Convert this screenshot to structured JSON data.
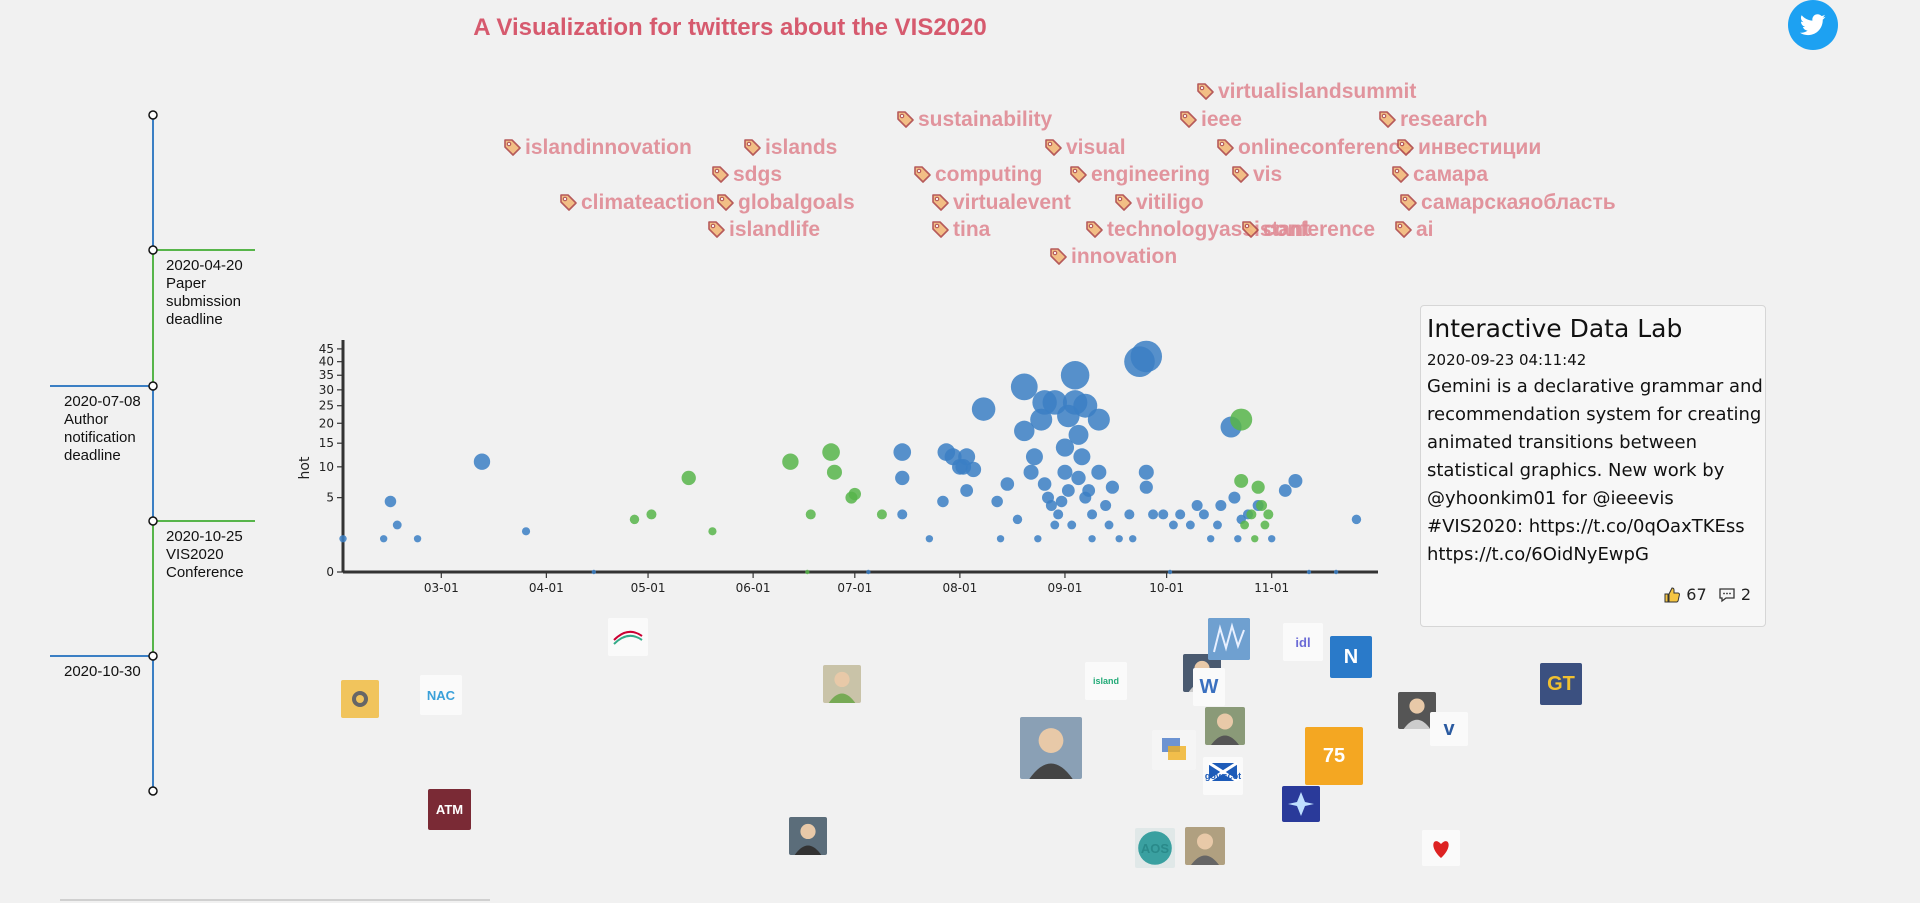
{
  "page": {
    "title": "A Visualization for twitters about the VIS2020",
    "twitter_icon": "twitter-bird-icon",
    "accent": "#d65a6e",
    "tag_color": "#e08a95",
    "blue": "#3b7fc4",
    "green": "#57b54a"
  },
  "timeline": {
    "events": [
      {
        "date": "2020-04-20",
        "text": "Paper\nsubmission\ndeadline",
        "side": "right",
        "color": "#57b54a"
      },
      {
        "date": "2020-07-08",
        "text": "Author\nnotification\ndeadline",
        "side": "left",
        "color": "#3b7fc4"
      },
      {
        "date": "2020-10-25",
        "text": "VIS2020\nConference",
        "side": "right",
        "color": "#57b54a"
      },
      {
        "date": "2020-10-30",
        "text": "",
        "side": "left",
        "color": "#3b7fc4"
      }
    ]
  },
  "tags": [
    {
      "text": "virtualislandsummit",
      "icon": "tag-icon"
    },
    {
      "text": "sustainability",
      "icon": "tag-icon"
    },
    {
      "text": "ieee",
      "icon": "tag-icon"
    },
    {
      "text": "research",
      "icon": "tag-icon"
    },
    {
      "text": "islandinnovation",
      "icon": "tag-icon"
    },
    {
      "text": "islands",
      "icon": "tag-icon"
    },
    {
      "text": "visual",
      "icon": "tag-icon"
    },
    {
      "text": "onlineconference",
      "icon": "tag-icon"
    },
    {
      "text": "инвестиции",
      "icon": "tag-icon"
    },
    {
      "text": "sdgs",
      "icon": "tag-icon"
    },
    {
      "text": "computing",
      "icon": "tag-icon"
    },
    {
      "text": "engineering",
      "icon": "tag-icon"
    },
    {
      "text": "vis",
      "icon": "tag-icon"
    },
    {
      "text": "самара",
      "icon": "tag-icon"
    },
    {
      "text": "climateaction",
      "icon": "tag-icon"
    },
    {
      "text": "globalgoals",
      "icon": "tag-icon"
    },
    {
      "text": "virtualevent",
      "icon": "tag-icon"
    },
    {
      "text": "vitiligo",
      "icon": "tag-icon"
    },
    {
      "text": "самарскаяобласть",
      "icon": "tag-icon"
    },
    {
      "text": "islandlife",
      "icon": "tag-icon"
    },
    {
      "text": "tina",
      "icon": "tag-icon"
    },
    {
      "text": "technologyassistant",
      "icon": "tag-icon"
    },
    {
      "text": "conference",
      "icon": "tag-icon"
    },
    {
      "text": "ai",
      "icon": "tag-icon"
    },
    {
      "text": "innovation",
      "icon": "tag-icon"
    }
  ],
  "chart_data": {
    "type": "scatter",
    "xlabel": "",
    "ylabel": "hot",
    "x_tick_labels": [
      "03-01",
      "04-01",
      "05-01",
      "06-01",
      "07-01",
      "08-01",
      "09-01",
      "10-01",
      "11-01"
    ],
    "y_tick_labels": [
      "0",
      "5",
      "10",
      "15",
      "20",
      "25",
      "30",
      "35",
      "40",
      "45"
    ],
    "xlim": [
      "2020-02-01",
      "2020-11-30"
    ],
    "ylim": [
      0,
      47
    ],
    "y_scale": "sqrt",
    "series": [
      {
        "color": "#3b7fc4",
        "points": [
          [
            "2020-02-01",
            1
          ],
          [
            "2020-02-13",
            1
          ],
          [
            "2020-02-15",
            4.5
          ],
          [
            "2020-02-17",
            2
          ],
          [
            "2020-02-23",
            1
          ],
          [
            "2020-03-13",
            11
          ],
          [
            "2020-03-26",
            1.5
          ],
          [
            "2020-04-15",
            0
          ],
          [
            "2020-07-05",
            0
          ],
          [
            "2020-07-15",
            13
          ],
          [
            "2020-07-15",
            8
          ],
          [
            "2020-07-15",
            3
          ],
          [
            "2020-07-23",
            1
          ],
          [
            "2020-07-27",
            4.5
          ],
          [
            "2020-07-28",
            13
          ],
          [
            "2020-07-30",
            12
          ],
          [
            "2020-08-01",
            10
          ],
          [
            "2020-08-02",
            10
          ],
          [
            "2020-08-03",
            6
          ],
          [
            "2020-08-03",
            12
          ],
          [
            "2020-08-05",
            9.5
          ],
          [
            "2020-08-08",
            24
          ],
          [
            "2020-08-12",
            4.5
          ],
          [
            "2020-08-13",
            1
          ],
          [
            "2020-08-15",
            7
          ],
          [
            "2020-08-18",
            2.5
          ],
          [
            "2020-08-20",
            18
          ],
          [
            "2020-08-20",
            31
          ],
          [
            "2020-08-22",
            9
          ],
          [
            "2020-08-23",
            12
          ],
          [
            "2020-08-24",
            1
          ],
          [
            "2020-08-25",
            21
          ],
          [
            "2020-08-26",
            26
          ],
          [
            "2020-08-26",
            7
          ],
          [
            "2020-08-27",
            5
          ],
          [
            "2020-08-28",
            4
          ],
          [
            "2020-08-29",
            26
          ],
          [
            "2020-08-29",
            2
          ],
          [
            "2020-08-30",
            3
          ],
          [
            "2020-08-31",
            4.5
          ],
          [
            "2020-09-01",
            14
          ],
          [
            "2020-09-01",
            9
          ],
          [
            "2020-09-02",
            22
          ],
          [
            "2020-09-02",
            6
          ],
          [
            "2020-09-03",
            2
          ],
          [
            "2020-09-04",
            26
          ],
          [
            "2020-09-04",
            35
          ],
          [
            "2020-09-05",
            17
          ],
          [
            "2020-09-05",
            8
          ],
          [
            "2020-09-06",
            12
          ],
          [
            "2020-09-07",
            25
          ],
          [
            "2020-09-07",
            5
          ],
          [
            "2020-09-08",
            6
          ],
          [
            "2020-09-09",
            3
          ],
          [
            "2020-09-09",
            1
          ],
          [
            "2020-09-11",
            9
          ],
          [
            "2020-09-11",
            21
          ],
          [
            "2020-09-13",
            4
          ],
          [
            "2020-09-14",
            2
          ],
          [
            "2020-09-15",
            6.5
          ],
          [
            "2020-09-17",
            1
          ],
          [
            "2020-09-20",
            3
          ],
          [
            "2020-09-21",
            1
          ],
          [
            "2020-09-23",
            40
          ],
          [
            "2020-09-25",
            42
          ],
          [
            "2020-09-25",
            9
          ],
          [
            "2020-09-25",
            6.5
          ],
          [
            "2020-09-27",
            3
          ],
          [
            "2020-09-30",
            3
          ],
          [
            "2020-10-02",
            0
          ],
          [
            "2020-10-03",
            2
          ],
          [
            "2020-10-05",
            3
          ],
          [
            "2020-10-08",
            2
          ],
          [
            "2020-10-10",
            4
          ],
          [
            "2020-10-12",
            3
          ],
          [
            "2020-10-14",
            1
          ],
          [
            "2020-10-16",
            2
          ],
          [
            "2020-10-17",
            4
          ],
          [
            "2020-10-20",
            19
          ],
          [
            "2020-10-21",
            5
          ],
          [
            "2020-10-22",
            1
          ],
          [
            "2020-10-23",
            2.5
          ],
          [
            "2020-10-25",
            3
          ],
          [
            "2020-10-28",
            4
          ],
          [
            "2020-11-01",
            1
          ],
          [
            "2020-11-05",
            6
          ],
          [
            "2020-11-08",
            7.5
          ],
          [
            "2020-11-12",
            0
          ],
          [
            "2020-11-20",
            0
          ],
          [
            "2020-11-26",
            2.5
          ]
        ]
      },
      {
        "color": "#57b54a",
        "points": [
          [
            "2020-04-27",
            2.5
          ],
          [
            "2020-05-02",
            3
          ],
          [
            "2020-05-13",
            8
          ],
          [
            "2020-05-20",
            1.5
          ],
          [
            "2020-06-12",
            11
          ],
          [
            "2020-06-17",
            0
          ],
          [
            "2020-06-18",
            3
          ],
          [
            "2020-06-24",
            13
          ],
          [
            "2020-06-25",
            9
          ],
          [
            "2020-06-30",
            5
          ],
          [
            "2020-07-01",
            5.5
          ],
          [
            "2020-07-09",
            3
          ],
          [
            "2020-10-23",
            21
          ],
          [
            "2020-10-23",
            7.5
          ],
          [
            "2020-10-24",
            2
          ],
          [
            "2020-10-26",
            3
          ],
          [
            "2020-10-27",
            1
          ],
          [
            "2020-10-28",
            6.5
          ],
          [
            "2020-10-29",
            4
          ],
          [
            "2020-10-30",
            2
          ],
          [
            "2020-10-31",
            3
          ]
        ]
      }
    ]
  },
  "tweet": {
    "author": "Interactive Data Lab",
    "datetime": "2020-09-23 04:11:42",
    "text": "Gemini is a declarative grammar and recommendation system for creating animated transitions between statistical graphics. New work by @yhoonkim01 for @ieeevis #VIS2020: https://t.co/0qOaxTKEss https://t.co/6OidNyEwpG",
    "likes": "67",
    "comments": "2",
    "like_icon": "thumbs-up-icon",
    "comment_icon": "comment-icon"
  },
  "avatars": [
    {
      "alt": "rapid7"
    },
    {
      "alt": "ntt"
    },
    {
      "alt": "idl"
    },
    {
      "alt": "N"
    },
    {
      "alt": "NAC"
    },
    {
      "alt": "island"
    },
    {
      "alt": "W"
    },
    {
      "alt": "gt computing"
    },
    {
      "alt": "v"
    },
    {
      "alt": "75"
    },
    {
      "alt": "gov.scot"
    },
    {
      "alt": "ATM"
    },
    {
      "alt": "AOS"
    },
    {
      "alt": "heart"
    }
  ]
}
